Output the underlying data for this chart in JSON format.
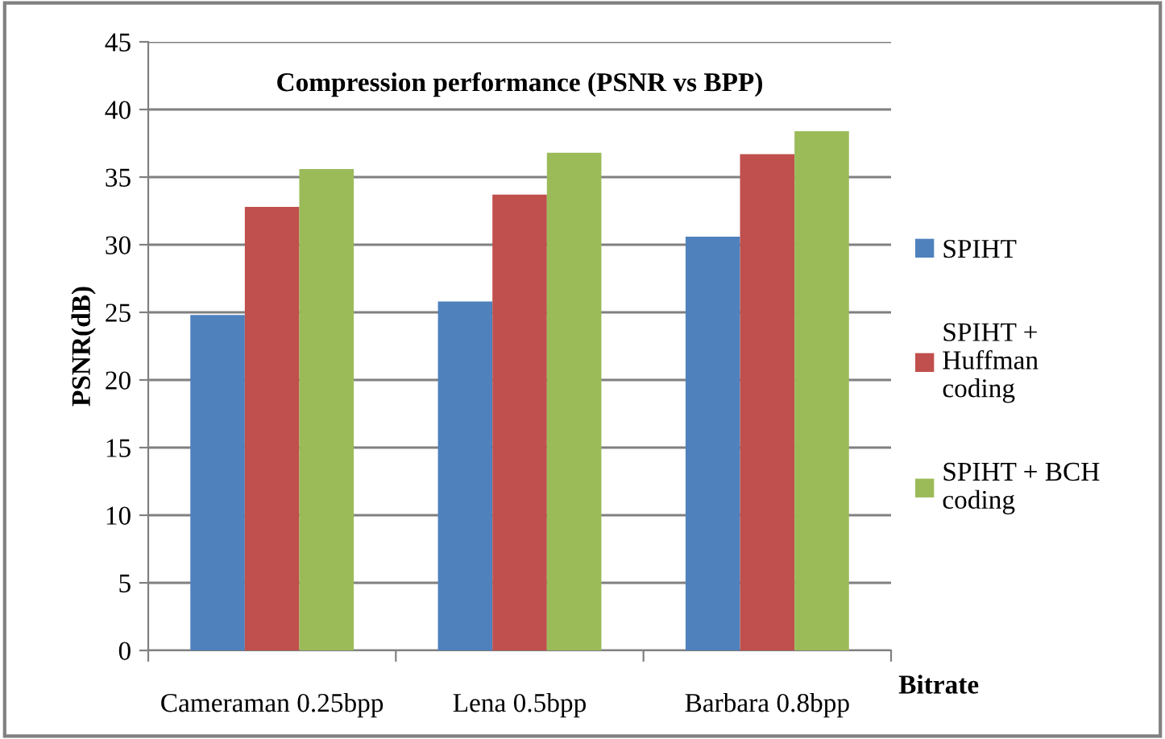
{
  "chart_data": {
    "type": "bar",
    "title": "Compression performance (PSNR vs BPP)",
    "xlabel": "Bitrate",
    "ylabel": "PSNR(dB)",
    "categories": [
      "Cameraman 0.25bpp",
      "Lena 0.5bpp",
      "Barbara 0.8bpp"
    ],
    "series": [
      {
        "name": "SPIHT",
        "color": "#4f81bd",
        "values": [
          24.8,
          25.8,
          30.6
        ]
      },
      {
        "name": "SPIHT +\nHuffman\ncoding",
        "color": "#c0504d",
        "values": [
          32.8,
          33.7,
          36.7
        ]
      },
      {
        "name": "SPIHT + BCH\ncoding",
        "color": "#9bbb59",
        "values": [
          35.6,
          36.8,
          38.4
        ]
      }
    ],
    "ylim": [
      0,
      45
    ],
    "yticks": [
      0,
      5,
      10,
      15,
      20,
      25,
      30,
      35,
      40,
      45
    ],
    "grid": "y",
    "legend": "right"
  }
}
